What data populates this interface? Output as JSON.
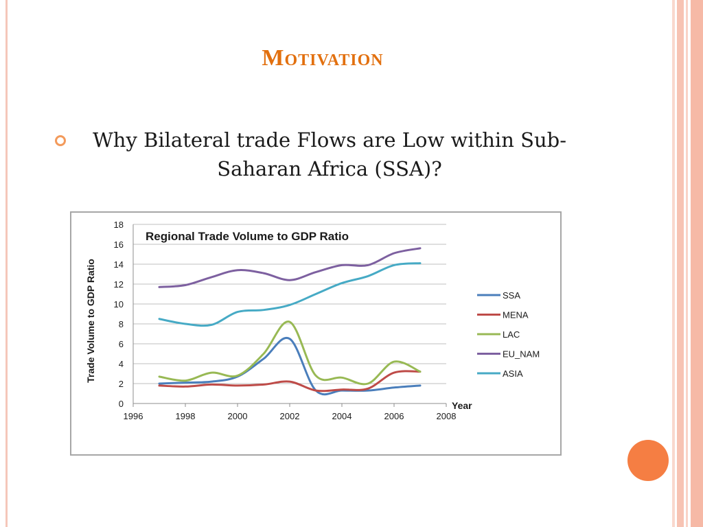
{
  "slide": {
    "title": "Motivation",
    "bullet": "Why Bilateral trade Flows are Low within Sub-Saharan Africa (SSA)?",
    "colors": {
      "title": "#e2700f",
      "bullet": "#f39a5b",
      "accent_circle": "#f57e43"
    }
  },
  "chart_data": {
    "type": "line",
    "title": "Regional Trade Volume to GDP Ratio",
    "xlabel": "Year",
    "ylabel": "Trade Volume to GDP Ratio",
    "xlim": [
      1996,
      2008
    ],
    "ylim": [
      0,
      18
    ],
    "x_ticks": [
      1996,
      1998,
      2000,
      2002,
      2004,
      2006,
      2008
    ],
    "y_ticks": [
      0,
      2,
      4,
      6,
      8,
      10,
      12,
      14,
      16,
      18
    ],
    "grid": "horizontal",
    "legend_position": "right",
    "x": [
      1997,
      1998,
      1999,
      2000,
      2001,
      2002,
      2003,
      2004,
      2005,
      2006,
      2007
    ],
    "series": [
      {
        "name": "SSA",
        "color": "#4a7ebb",
        "values": [
          2.0,
          2.1,
          2.2,
          2.7,
          4.5,
          6.5,
          1.3,
          1.3,
          1.3,
          1.6,
          1.8
        ]
      },
      {
        "name": "MENA",
        "color": "#be4b48",
        "values": [
          1.8,
          1.7,
          1.9,
          1.8,
          1.9,
          2.2,
          1.3,
          1.4,
          1.5,
          3.1,
          3.2
        ]
      },
      {
        "name": "LAC",
        "color": "#98b954",
        "values": [
          2.7,
          2.3,
          3.1,
          2.8,
          5.0,
          8.2,
          2.8,
          2.6,
          2.0,
          4.2,
          3.2
        ]
      },
      {
        "name": "EU_NAM",
        "color": "#7d60a0",
        "values": [
          11.7,
          11.9,
          12.7,
          13.4,
          13.1,
          12.4,
          13.2,
          13.9,
          13.9,
          15.1,
          15.6
        ]
      },
      {
        "name": "ASIA",
        "color": "#46aac5",
        "values": [
          8.5,
          8.0,
          7.9,
          9.2,
          9.4,
          9.9,
          11.0,
          12.1,
          12.8,
          13.9,
          14.1
        ]
      }
    ]
  }
}
